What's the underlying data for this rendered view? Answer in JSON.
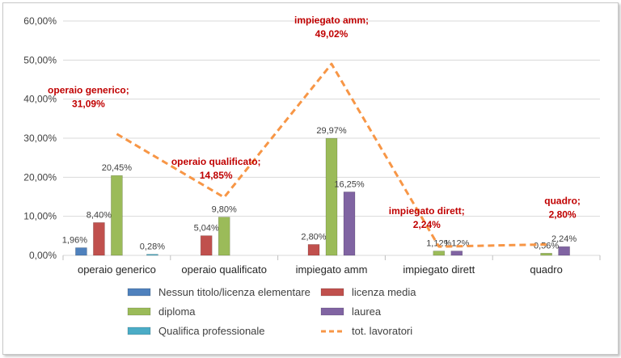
{
  "chart_data": {
    "type": "bar",
    "categories": [
      "operaio generico",
      "operaio qualificato",
      "impiegato amm",
      "impiegato dirett",
      "quadro"
    ],
    "ylim": [
      0,
      60
    ],
    "yticks": [
      "0,00%",
      "10,00%",
      "20,00%",
      "30,00%",
      "40,00%",
      "50,00%",
      "60,00%"
    ],
    "grid": true,
    "legend_position": "bottom",
    "series": [
      {
        "name": "Nessun titolo/licenza elementare",
        "kind": "bar",
        "color": "#4f81bd",
        "values": [
          1.96,
          0,
          0,
          0,
          0
        ],
        "labels": [
          "1,96%",
          "",
          "",
          "",
          ""
        ]
      },
      {
        "name": "licenza media",
        "kind": "bar",
        "color": "#c0504d",
        "values": [
          8.4,
          5.04,
          2.8,
          0,
          0
        ],
        "labels": [
          "8,40%",
          "5,04%",
          "2,80%",
          "",
          ""
        ]
      },
      {
        "name": "diploma",
        "kind": "bar",
        "color": "#9bbb59",
        "values": [
          20.45,
          9.8,
          29.97,
          1.12,
          0.56
        ],
        "labels": [
          "20,45%",
          "9,80%",
          "29,97%",
          "1,12%",
          "0,56%"
        ]
      },
      {
        "name": "laurea",
        "kind": "bar",
        "color": "#8064a2",
        "values": [
          0,
          0,
          16.25,
          1.12,
          2.24
        ],
        "labels": [
          "",
          "",
          "16,25%",
          "1,12%",
          "2,24%"
        ]
      },
      {
        "name": "Qualifica professionale",
        "kind": "bar",
        "color": "#4bacc6",
        "values": [
          0.28,
          0,
          0,
          0,
          0
        ],
        "labels": [
          "0,28%",
          "",
          "",
          "",
          ""
        ]
      },
      {
        "name": "tot. lavoratori",
        "kind": "line",
        "color": "#f79646",
        "values": [
          31.09,
          14.85,
          49.02,
          2.24,
          2.8
        ],
        "labels": [
          "operaio generico;\n31,09%",
          "operaio qualificato;\n14,85%",
          "impiegato amm;\n49,02%",
          "impiegato dirett;\n2,24%",
          "quadro;\n2,80%"
        ]
      }
    ]
  }
}
